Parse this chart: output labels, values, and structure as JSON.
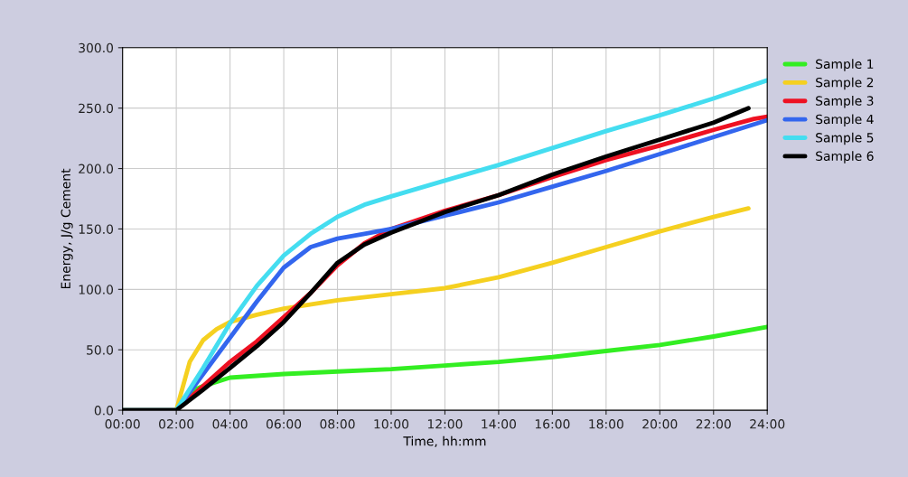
{
  "chart_data": {
    "type": "line",
    "xlabel": "Time, hh:mm",
    "ylabel": "Energy, J/g Cement",
    "xlim": [
      0,
      24
    ],
    "ylim": [
      0,
      300
    ],
    "xticks": [
      {
        "value": 0,
        "label": "00:00"
      },
      {
        "value": 2,
        "label": "02:00"
      },
      {
        "value": 4,
        "label": "04:00"
      },
      {
        "value": 6,
        "label": "06:00"
      },
      {
        "value": 8,
        "label": "08:00"
      },
      {
        "value": 10,
        "label": "10:00"
      },
      {
        "value": 12,
        "label": "12:00"
      },
      {
        "value": 14,
        "label": "14:00"
      },
      {
        "value": 16,
        "label": "16:00"
      },
      {
        "value": 18,
        "label": "18:00"
      },
      {
        "value": 20,
        "label": "20:00"
      },
      {
        "value": 22,
        "label": "22:00"
      },
      {
        "value": 24,
        "label": "24:00"
      }
    ],
    "yticks": [
      {
        "value": 0,
        "label": "0.0"
      },
      {
        "value": 50,
        "label": "50.0"
      },
      {
        "value": 100,
        "label": "100.0"
      },
      {
        "value": 150,
        "label": "150.0"
      },
      {
        "value": 200,
        "label": "200.0"
      },
      {
        "value": 250,
        "label": "250.0"
      },
      {
        "value": 300,
        "label": "300.0"
      }
    ],
    "grid": true,
    "legend": "top right",
    "marker": "none",
    "line_style": "solid",
    "series": [
      {
        "name": "Sample 1",
        "color": "#33ee22",
        "x": [
          0,
          2,
          2.5,
          3,
          4,
          6,
          8,
          10,
          12,
          14,
          16,
          18,
          20,
          22,
          24
        ],
        "values": [
          0,
          0,
          15,
          20,
          27,
          30,
          32,
          34,
          37,
          40,
          44,
          49,
          54,
          61,
          69
        ]
      },
      {
        "name": "Sample 2",
        "color": "#f5d020",
        "x": [
          0,
          2,
          2.5,
          3,
          3.5,
          4,
          5,
          6,
          8,
          10,
          12,
          14,
          16,
          18,
          20,
          22,
          23.3
        ],
        "values": [
          0,
          0,
          40,
          58,
          67,
          73,
          79,
          84,
          91,
          96,
          101,
          110,
          122,
          135,
          148,
          160,
          167
        ]
      },
      {
        "name": "Sample 3",
        "color": "#ee1122",
        "x": [
          0,
          2,
          3,
          4,
          5,
          6,
          7,
          8,
          9,
          10,
          12,
          14,
          16,
          18,
          20,
          22,
          23.5,
          24
        ],
        "values": [
          0,
          0,
          20,
          40,
          57,
          77,
          97,
          120,
          138,
          150,
          165,
          178,
          193,
          207,
          219,
          232,
          241,
          243
        ]
      },
      {
        "name": "Sample 4",
        "color": "#3366ee",
        "x": [
          0,
          2,
          3,
          4,
          5,
          6,
          7,
          8,
          9,
          10,
          12,
          14,
          16,
          18,
          20,
          22,
          24
        ],
        "values": [
          0,
          0,
          30,
          60,
          90,
          118,
          135,
          142,
          146,
          150,
          161,
          172,
          185,
          198,
          212,
          226,
          240
        ]
      },
      {
        "name": "Sample 5",
        "color": "#44ddf0",
        "x": [
          0,
          2,
          3,
          4,
          5,
          6,
          7,
          8,
          9,
          10,
          12,
          14,
          16,
          18,
          20,
          22,
          24
        ],
        "values": [
          0,
          0,
          35,
          72,
          103,
          128,
          146,
          160,
          170,
          177,
          190,
          203,
          217,
          231,
          244,
          258,
          273
        ]
      },
      {
        "name": "Sample 6",
        "color": "#000000",
        "x": [
          0,
          2,
          3,
          4,
          5,
          6,
          7,
          8,
          9,
          10,
          12,
          14,
          16,
          18,
          20,
          22,
          23.3
        ],
        "values": [
          0,
          0,
          17,
          35,
          53,
          73,
          97,
          122,
          137,
          147,
          164,
          178,
          195,
          210,
          224,
          238,
          250
        ]
      }
    ]
  }
}
